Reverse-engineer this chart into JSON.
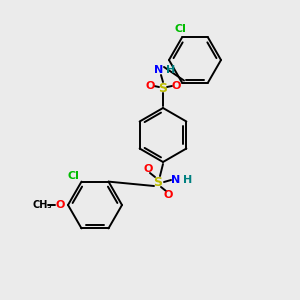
{
  "bg_color": "#ebebeb",
  "bond_color": "#000000",
  "atom_colors": {
    "Cl": "#00bb00",
    "S": "#bbbb00",
    "N": "#0000ff",
    "O": "#ff0000",
    "C": "#000000",
    "H": "#008080"
  },
  "figsize": [
    3.0,
    3.0
  ],
  "dpi": 100
}
